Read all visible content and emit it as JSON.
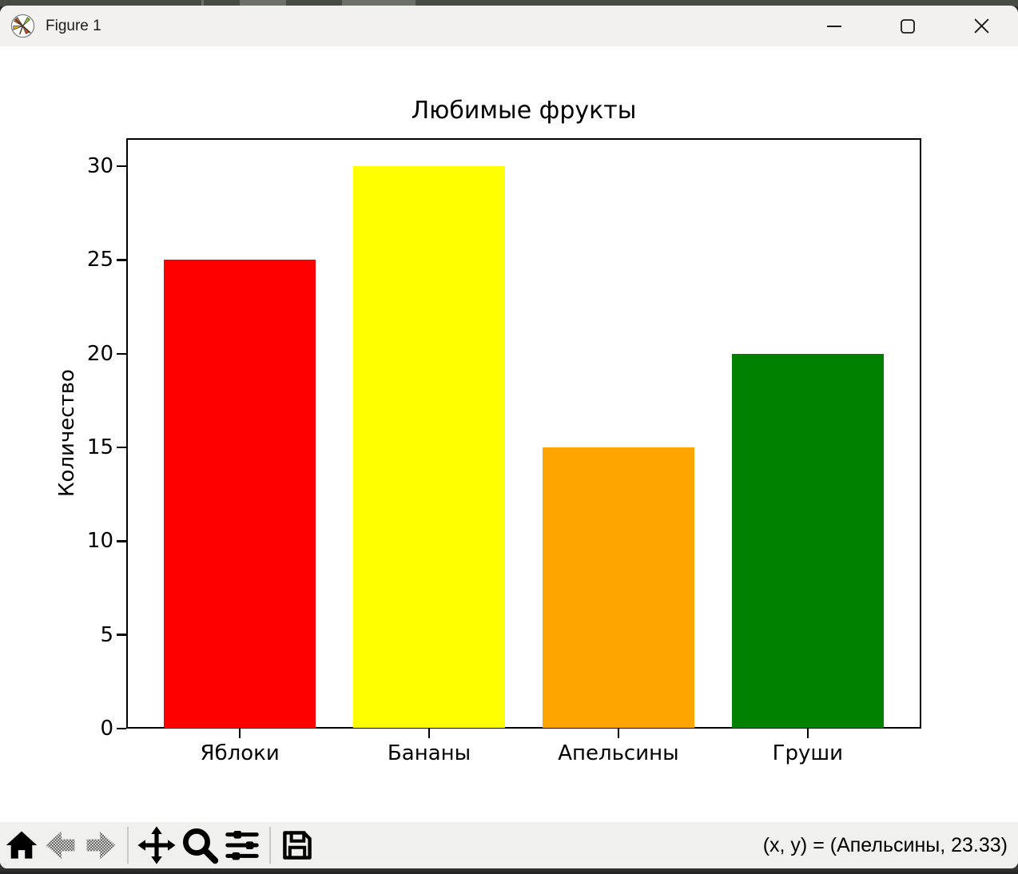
{
  "window": {
    "title": "Figure 1",
    "app_icon": "matplotlib-logo",
    "controls": [
      {
        "name": "minimize"
      },
      {
        "name": "maximize"
      },
      {
        "name": "close"
      }
    ]
  },
  "chart_data": {
    "type": "bar",
    "title": "Любимые фрукты",
    "xlabel": "",
    "ylabel": "Количество",
    "categories": [
      "Яблоки",
      "Бананы",
      "Апельсины",
      "Груши"
    ],
    "values": [
      25,
      30,
      15,
      20
    ],
    "colors": [
      "#ff0000",
      "#ffff00",
      "#ffa500",
      "#008000"
    ],
    "yticks": [
      0,
      5,
      10,
      15,
      20,
      25,
      30
    ],
    "ylim": [
      0,
      31.5
    ],
    "xlim": [
      -0.6,
      3.6
    ],
    "bar_width": 0.8,
    "grid": false,
    "legend": null
  },
  "toolbar": {
    "icons": [
      {
        "name": "home",
        "disabled": false
      },
      {
        "name": "back",
        "disabled": true
      },
      {
        "name": "forward",
        "disabled": true
      },
      {
        "name": "pan",
        "disabled": false
      },
      {
        "name": "zoom-to-rect",
        "disabled": false
      },
      {
        "name": "configure-subplots",
        "disabled": false
      },
      {
        "name": "save",
        "disabled": false
      }
    ],
    "status": "(x, y) = (Апельсины, 23.33)"
  }
}
